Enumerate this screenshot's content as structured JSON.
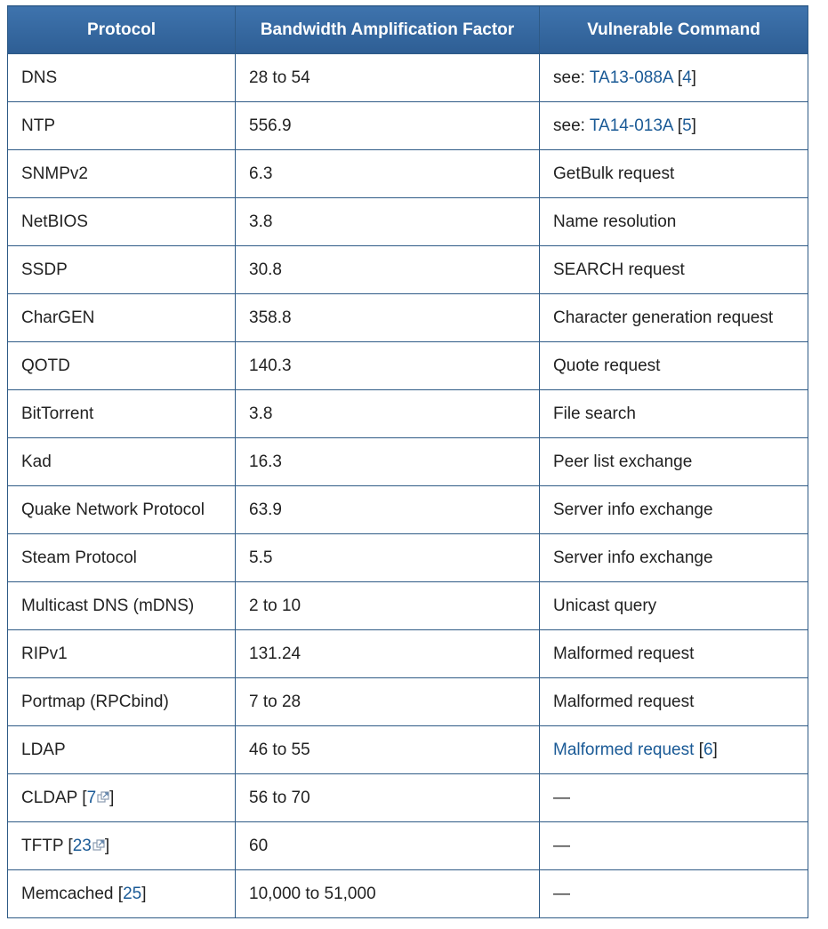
{
  "table": {
    "headers": [
      "Protocol",
      "Bandwidth Amplification Factor",
      "Vulnerable Command"
    ],
    "rows": [
      {
        "protocol": "DNS",
        "factor": "28 to 54",
        "command": {
          "prefix": "see: ",
          "link": "TA13-088A",
          "ref": "4"
        }
      },
      {
        "protocol": "NTP",
        "factor": "556.9",
        "command": {
          "prefix": "see: ",
          "link": "TA14-013A",
          "ref": "5"
        }
      },
      {
        "protocol": "SNMPv2",
        "factor": "6.3",
        "command": {
          "text": "GetBulk request"
        }
      },
      {
        "protocol": "NetBIOS",
        "factor": "3.8",
        "command": {
          "text": "Name resolution"
        }
      },
      {
        "protocol": "SSDP",
        "factor": "30.8",
        "command": {
          "text": "SEARCH request"
        }
      },
      {
        "protocol": "CharGEN",
        "factor": "358.8",
        "command": {
          "text": "Character generation request"
        }
      },
      {
        "protocol": "QOTD",
        "factor": "140.3",
        "command": {
          "text": "Quote request"
        }
      },
      {
        "protocol": "BitTorrent",
        "factor": "3.8",
        "command": {
          "text": "File search"
        }
      },
      {
        "protocol": "Kad",
        "factor": "16.3",
        "command": {
          "text": "Peer list exchange"
        }
      },
      {
        "protocol": "Quake Network Protocol",
        "factor": "63.9",
        "command": {
          "text": "Server info exchange"
        }
      },
      {
        "protocol": "Steam Protocol",
        "factor": "5.5",
        "command": {
          "text": "Server info exchange"
        }
      },
      {
        "protocol": "Multicast DNS (mDNS)",
        "factor": "2 to 10",
        "command": {
          "text": "Unicast query"
        }
      },
      {
        "protocol": "RIPv1",
        "factor": "131.24",
        "command": {
          "text": "Malformed request"
        }
      },
      {
        "protocol": "Portmap (RPCbind)",
        "factor": "7 to 28",
        "command": {
          "text": "Malformed request"
        }
      },
      {
        "protocol": "LDAP",
        "factor": "46 to 55",
        "command": {
          "link": "Malformed request",
          "ref": "6"
        }
      },
      {
        "protocol": "CLDAP",
        "protocol_ref": "7",
        "protocol_ref_external": true,
        "factor": "56 to 70",
        "command": {
          "text": "—"
        }
      },
      {
        "protocol": "TFTP",
        "protocol_ref": "23",
        "protocol_ref_external": true,
        "factor": "60",
        "command": {
          "text": "—"
        }
      },
      {
        "protocol": "Memcached",
        "protocol_ref": "25",
        "factor": "10,000 to 51,000",
        "command": {
          "text": "—"
        }
      }
    ]
  },
  "icons": {
    "external_link": "external-link-icon"
  },
  "colors": {
    "header_bg": "#3a6ea5",
    "border": "#2e5a86",
    "link": "#1a5a96"
  }
}
